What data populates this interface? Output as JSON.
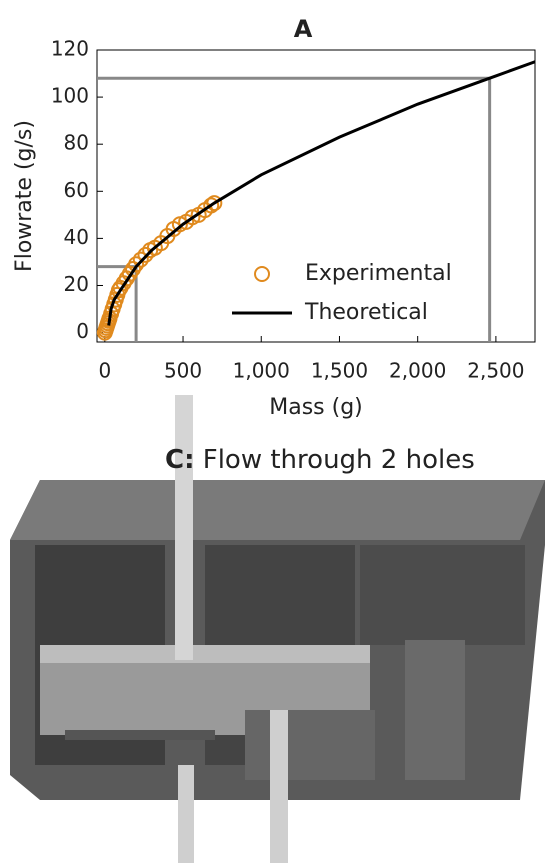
{
  "chart_data": {
    "type": "scatter",
    "title": "A",
    "xlabel": "Mass (g)",
    "ylabel": "Flowrate (g/s)",
    "xlim": [
      -50,
      2750
    ],
    "ylim": [
      -4,
      120
    ],
    "xticks": [
      0,
      500,
      {
        "value": 1000,
        "label": "1,000"
      },
      {
        "value": 1500,
        "label": "1,500"
      },
      {
        "value": 2000,
        "label": "2,000"
      },
      {
        "value": 2500,
        "label": "2,500"
      }
    ],
    "yticks": [
      0,
      20,
      40,
      60,
      80,
      100,
      120
    ],
    "legend": "lower right",
    "series": [
      {
        "name": "Experimental",
        "type": "scatter",
        "color": "#e08a1e",
        "x": [
          0,
          5,
          10,
          15,
          20,
          25,
          30,
          40,
          50,
          60,
          70,
          80,
          90,
          100,
          120,
          140,
          160,
          180,
          200,
          230,
          260,
          290,
          320,
          360,
          400,
          440,
          480,
          520,
          560,
          600,
          640,
          680,
          700
        ],
        "values": [
          0,
          1,
          2,
          3,
          4,
          5,
          6,
          8,
          10,
          12,
          14,
          16,
          18,
          19,
          21,
          23,
          25,
          27,
          29,
          31,
          33,
          35,
          36,
          38,
          41,
          44,
          46,
          47,
          49,
          50,
          52,
          54,
          55
        ]
      },
      {
        "name": "Theoretical",
        "type": "line",
        "color": "#000000",
        "x": [
          25,
          40,
          60,
          100,
          200,
          300,
          500,
          700,
          1000,
          1500,
          2000,
          2500,
          2750
        ],
        "values": [
          3,
          10,
          14,
          18,
          28,
          35,
          46,
          55,
          67,
          83,
          97,
          109,
          115
        ]
      }
    ],
    "guides": [
      {
        "x": 200,
        "y": 28
      },
      {
        "x": 2460,
        "y": 108
      }
    ]
  },
  "panel_c": {
    "label": "C:",
    "title": "Flow through 2 holes"
  }
}
